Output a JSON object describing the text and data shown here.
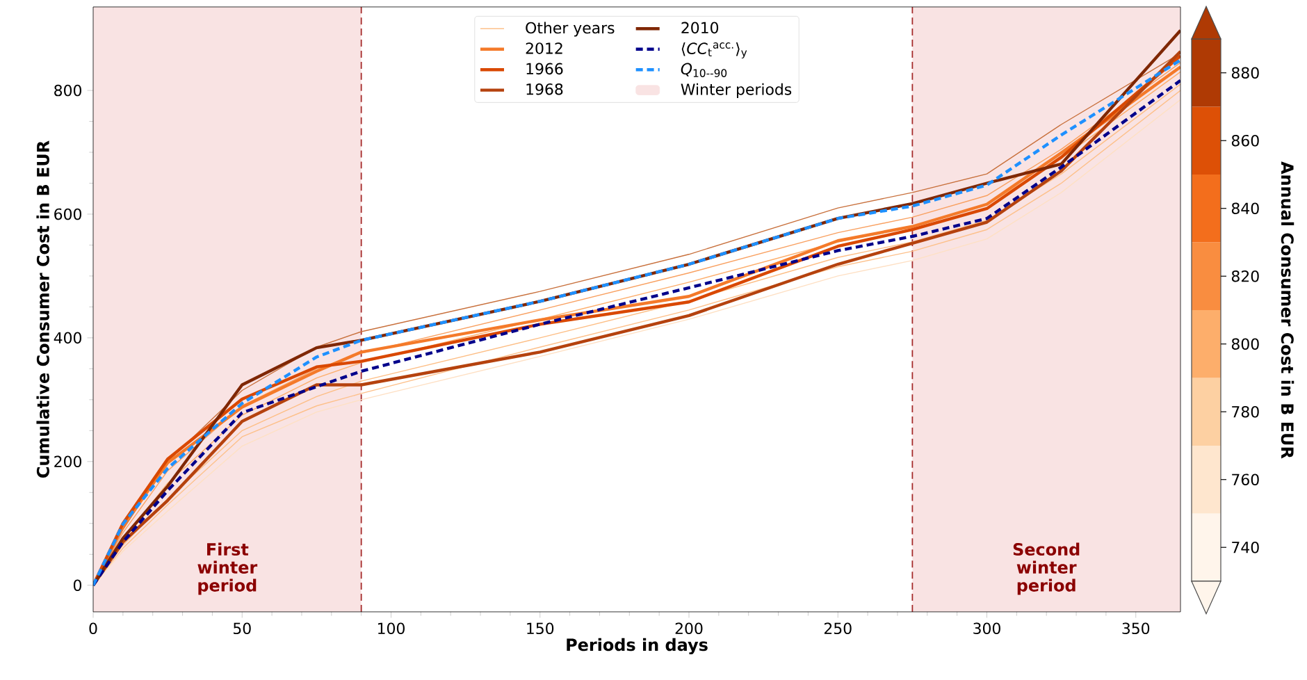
{
  "chart_data": {
    "type": "line",
    "xlabel": "Periods in days",
    "ylabel": "Cumulative Consumer Cost in B EUR",
    "clabel": "Annual Consumer Cost in B EUR",
    "x": [
      0,
      10,
      25,
      50,
      75,
      90,
      150,
      200,
      250,
      275,
      300,
      325,
      365
    ],
    "xlim": [
      0,
      365
    ],
    "ylim": [
      -43,
      935
    ],
    "xticks": [
      0,
      50,
      100,
      150,
      200,
      250,
      300,
      350
    ],
    "yticks": [
      0,
      200,
      400,
      600,
      800
    ],
    "clim": [
      730,
      890
    ],
    "cticks": [
      740,
      760,
      780,
      800,
      820,
      840,
      860,
      880
    ],
    "legend": "top",
    "line_style": "solid",
    "series": [
      {
        "name": "Other years",
        "color": "#fdc08a",
        "values": [
          0,
          60,
          130,
          240,
          290,
          310,
          385,
          445,
          515,
          540,
          575,
          650,
          800
        ]
      },
      {
        "color": "#c8703c",
        "values": [
          0,
          90,
          200,
          315,
          385,
          410,
          475,
          535,
          610,
          635,
          665,
          745,
          860
        ]
      },
      {
        "color": "#fdae6b",
        "values": [
          0,
          75,
          165,
          275,
          335,
          360,
          430,
          490,
          555,
          580,
          615,
          690,
          830
        ]
      },
      {
        "color": "#fdbe85",
        "values": [
          0,
          65,
          140,
          250,
          305,
          330,
          400,
          460,
          530,
          555,
          590,
          665,
          810
        ]
      },
      {
        "color": "#f9a060",
        "values": [
          0,
          85,
          185,
          290,
          350,
          375,
          445,
          505,
          570,
          595,
          630,
          705,
          845
        ]
      },
      {
        "color": "#fee0c4",
        "values": [
          0,
          55,
          120,
          225,
          280,
          300,
          370,
          430,
          500,
          525,
          560,
          635,
          785
        ]
      },
      {
        "name": "2012",
        "color": "#f47a2a",
        "values": [
          0,
          95,
          198,
          288,
          346,
          377,
          429,
          467,
          557,
          580,
          616,
          699,
          838
        ]
      },
      {
        "name": "1966",
        "color": "#d94801",
        "values": [
          0,
          100,
          204,
          301,
          353,
          362,
          422,
          458,
          548,
          575,
          609,
          692,
          856
        ]
      },
      {
        "name": "1968",
        "color": "#b5420e",
        "values": [
          0,
          70,
          137,
          265,
          324,
          324,
          377,
          436,
          519,
          553,
          587,
          670,
          863
        ]
      },
      {
        "name": "2010",
        "color": "#7f2704",
        "values": [
          0,
          76,
          160,
          324,
          384,
          396,
          459,
          519,
          593,
          617,
          650,
          681,
          897
        ]
      },
      {
        "name": "⟨*CC*$_{t}$$^{acc.}$⟩$_{y}$",
        "color": "#00008b",
        "line_style": "dashed",
        "values": [
          0,
          70,
          153,
          279,
          321,
          346,
          422,
          481,
          541,
          564,
          593,
          676,
          816
        ]
      },
      {
        "name": "*Q*$_{10--90}$",
        "color": "#1e90ff",
        "line_style": "dashed",
        "values": [
          0,
          99,
          189,
          294,
          369,
          396,
          459,
          519,
          593,
          613,
          647,
          728,
          849
        ]
      }
    ],
    "ref_lines": [
      {
        "axis": "x",
        "value": 90,
        "color": "#a52a2a",
        "line_style": "dashed"
      },
      {
        "axis": "x",
        "value": 275,
        "color": "#a52a2a",
        "line_style": "dashed"
      }
    ],
    "bands": [
      {
        "axis": "x",
        "from": 0,
        "to": 90,
        "label": "First winter period",
        "color": "#f9e3e3"
      },
      {
        "axis": "x",
        "from": 275,
        "to": 365,
        "label": "Second winter period",
        "color": "#f9e3e3"
      }
    ],
    "annotations": [
      "Winter periods"
    ]
  }
}
